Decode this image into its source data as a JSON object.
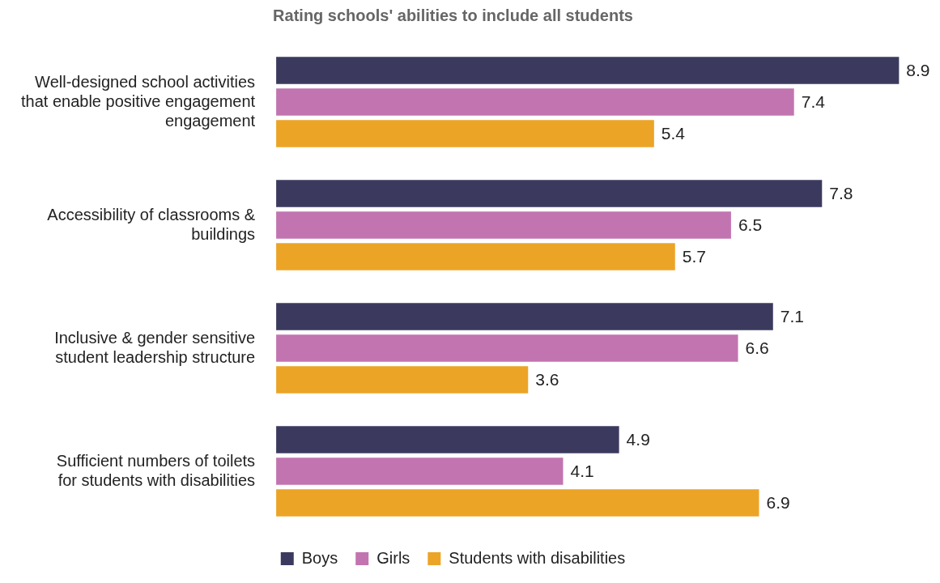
{
  "chart_data": {
    "type": "bar",
    "orientation": "horizontal",
    "title": "Rating schools' abilities to include all students",
    "categories": [
      "Well-designed school activities that enable positive engagement engagement",
      "Accessibility of classrooms & buildings",
      "Inclusive & gender sensitive student leadership structure",
      "Sufficient numbers of toilets for students with disabilities"
    ],
    "series": [
      {
        "name": "Boys",
        "color": "#3b3a5e",
        "values": [
          8.9,
          7.8,
          7.1,
          4.9
        ]
      },
      {
        "name": "Girls",
        "color": "#c274b0",
        "values": [
          7.4,
          6.5,
          6.6,
          4.1
        ]
      },
      {
        "name": "Students with disabilities",
        "color": "#eca427",
        "values": [
          5.4,
          5.7,
          3.6,
          6.9
        ]
      }
    ],
    "data_labels": true,
    "legend": "bottom",
    "tick_labels": "y"
  }
}
